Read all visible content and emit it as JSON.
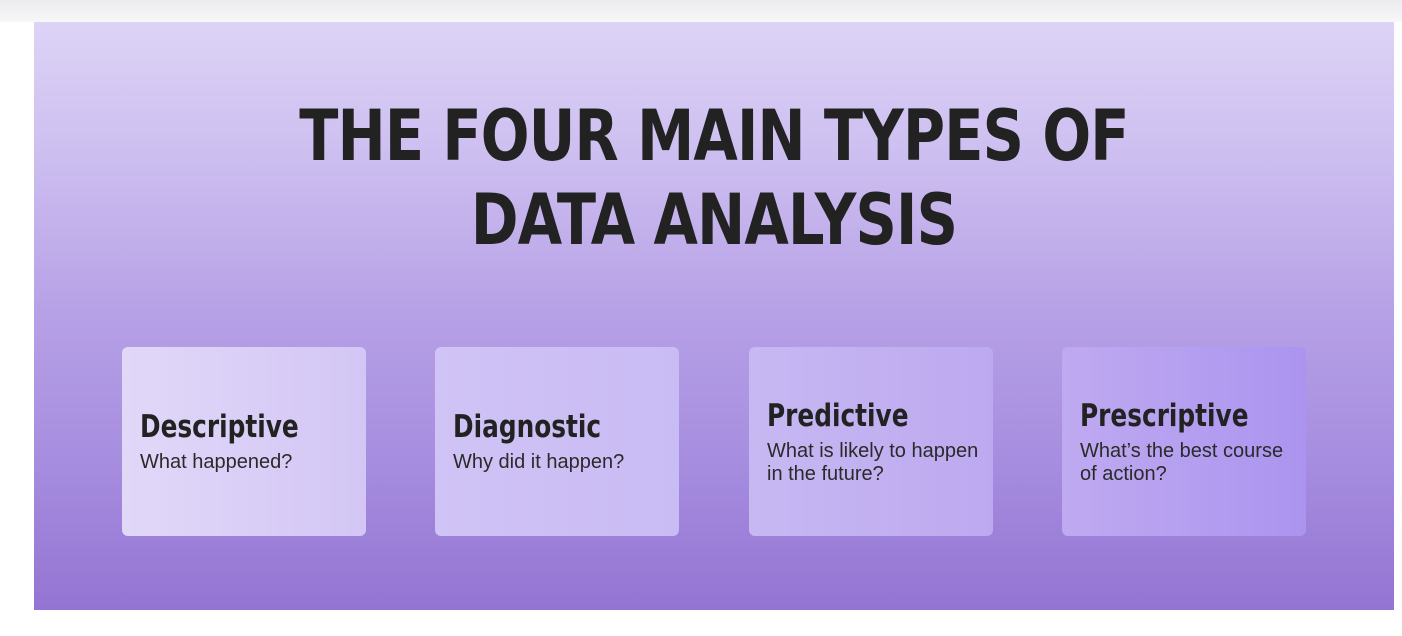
{
  "banner": {
    "title_line1": "THE FOUR MAIN TYPES OF",
    "title_line2": "DATA ANALYSIS",
    "cards": [
      {
        "title": "Descriptive",
        "question": "What happened?"
      },
      {
        "title": "Diagnostic",
        "question": "Why did it happen?"
      },
      {
        "title": "Predictive",
        "question": "What is likely to happen in the future?"
      },
      {
        "title": "Prescriptive",
        "question": "What’s the best course of action?"
      }
    ]
  },
  "colors": {
    "gradient_top": "#ddd3f6",
    "gradient_bottom": "#9474d3",
    "text": "#222222"
  }
}
